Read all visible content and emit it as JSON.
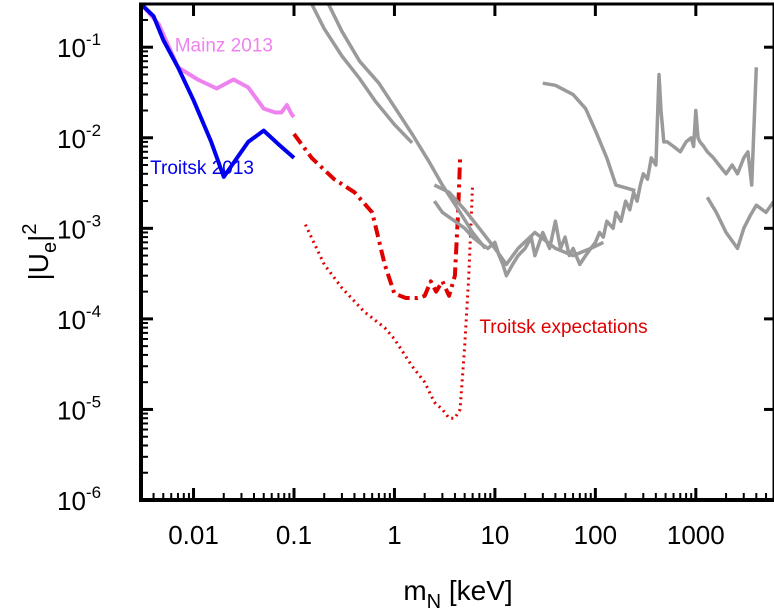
{
  "chart_data": {
    "type": "line",
    "title": "",
    "xlabel": {
      "main": "m",
      "sub": "N",
      "rest": " [keV]"
    },
    "ylabel": {
      "pre": "|U",
      "sub": "e",
      "post": "|",
      "sup": "2"
    },
    "xscale": "log",
    "yscale": "log",
    "xlim": [
      0.003,
      6000
    ],
    "ylim": [
      1e-06,
      0.3
    ],
    "x_ticks": [
      {
        "value": 0.01,
        "label": "0.01"
      },
      {
        "value": 0.1,
        "label": "0.1"
      },
      {
        "value": 1,
        "label": "1"
      },
      {
        "value": 10,
        "label": "10"
      },
      {
        "value": 100,
        "label": "100"
      },
      {
        "value": 1000,
        "label": "1000"
      }
    ],
    "y_ticks": [
      {
        "value": 1e-06,
        "base": "10",
        "exp": "-6"
      },
      {
        "value": 1e-05,
        "base": "10",
        "exp": "-5"
      },
      {
        "value": 0.0001,
        "base": "10",
        "exp": "-4"
      },
      {
        "value": 0.001,
        "base": "10",
        "exp": "-3"
      },
      {
        "value": 0.01,
        "base": "10",
        "exp": "-2"
      },
      {
        "value": 0.1,
        "base": "10",
        "exp": "-1"
      }
    ],
    "grid": false,
    "series": [
      {
        "name": "Mainz 2013",
        "color": "#ee82ee",
        "style": "solid",
        "x": [
          0.003,
          0.0045,
          0.007,
          0.011,
          0.017,
          0.025,
          0.035,
          0.05,
          0.065,
          0.075,
          0.085,
          0.095,
          0.1
        ],
        "y": [
          0.3,
          0.18,
          0.06,
          0.044,
          0.035,
          0.044,
          0.036,
          0.021,
          0.019,
          0.019,
          0.023,
          0.018,
          0.017
        ]
      },
      {
        "name": "Troitsk 2013",
        "color": "#0000ee",
        "style": "solid",
        "x": [
          0.003,
          0.004,
          0.005,
          0.007,
          0.01,
          0.015,
          0.02,
          0.035,
          0.05,
          0.07,
          0.1
        ],
        "y": [
          0.3,
          0.22,
          0.12,
          0.06,
          0.026,
          0.009,
          0.0037,
          0.009,
          0.012,
          0.0085,
          0.006
        ]
      },
      {
        "name": "Troitsk expectations (dash-dot)",
        "color": "#e00000",
        "style": "dashdot",
        "x": [
          0.1,
          0.15,
          0.25,
          0.4,
          0.6,
          0.8,
          1.0,
          1.3,
          1.7,
          2.0,
          2.3,
          2.6,
          3.0,
          3.5,
          4.0,
          4.3,
          4.5
        ],
        "y": [
          0.011,
          0.006,
          0.0035,
          0.0025,
          0.0015,
          0.0004,
          0.00019,
          0.00017,
          0.00017,
          0.00018,
          0.00026,
          0.0002,
          0.00026,
          0.00018,
          0.0003,
          0.0015,
          0.006
        ]
      },
      {
        "name": "Troitsk expectations (dotted)",
        "color": "#e00000",
        "style": "dotted",
        "x": [
          0.13,
          0.2,
          0.3,
          0.5,
          0.8,
          1.0,
          1.5,
          2.0,
          2.5,
          3.0,
          3.5,
          4.0,
          4.5,
          5.0,
          5.5,
          6.0
        ],
        "y": [
          0.0011,
          0.0004,
          0.00022,
          0.00012,
          8e-05,
          6e-05,
          3e-05,
          2e-05,
          1.2e-05,
          1e-05,
          8e-06,
          8e-06,
          1e-05,
          5e-05,
          0.0003,
          0.003
        ]
      },
      {
        "name": "",
        "color": "#9a9a9a",
        "style": "solid",
        "x": [
          0.22,
          0.3,
          0.45,
          0.7,
          1.0,
          1.5,
          2.2,
          3.0,
          4.5,
          6.0,
          8.0
        ],
        "y": [
          0.3,
          0.15,
          0.07,
          0.04,
          0.022,
          0.011,
          0.0055,
          0.003,
          0.0015,
          0.0009,
          0.0006
        ]
      },
      {
        "name": "",
        "color": "#9a9a9a",
        "style": "solid",
        "x": [
          0.15,
          0.2,
          0.3,
          0.45,
          0.65,
          1.0,
          1.5
        ],
        "y": [
          0.3,
          0.16,
          0.08,
          0.045,
          0.025,
          0.014,
          0.0088
        ]
      },
      {
        "name": "",
        "color": "#9a9a9a",
        "style": "solid",
        "x": [
          2.5,
          3.5,
          5.0,
          7.0,
          10.0,
          13.0,
          17.0,
          25.0,
          40.0,
          60.0,
          90.0,
          120.0
        ],
        "y": [
          0.003,
          0.0025,
          0.0016,
          0.001,
          0.0006,
          0.0004,
          0.0006,
          0.0009,
          0.0006,
          0.0005,
          0.0006,
          0.0007
        ]
      },
      {
        "name": "",
        "color": "#9a9a9a",
        "style": "solid",
        "x": [
          2.5,
          3.0,
          4.0,
          5.0,
          6.0,
          7.0,
          8.5,
          10.0,
          11.0,
          12.0,
          13.0,
          15.0,
          17.0,
          20.0,
          23.0,
          25.0,
          30.0,
          35.0,
          40.0,
          45.0,
          50.0,
          55.0,
          60.0,
          70.0,
          80.0,
          90.0,
          100.0,
          110.0,
          120.0,
          130.0,
          150.0,
          160.0,
          180.0,
          200.0,
          220.0,
          240.0,
          260.0,
          280.0,
          300.0,
          330.0,
          360.0,
          400.0,
          430.0,
          450.0,
          480.0,
          520.0,
          600.0,
          700.0,
          800.0,
          900.0,
          950.0,
          1000.0,
          1050.0,
          1100.0,
          1200.0,
          1300.0,
          1500.0,
          1700.0,
          2000.0,
          2300.0,
          2600.0,
          3000.0,
          3300.0,
          3600.0,
          4000.0
        ],
        "y": [
          0.002,
          0.0015,
          0.0012,
          0.001,
          0.0008,
          0.0007,
          0.0006,
          0.0007,
          0.0005,
          0.0004,
          0.0003,
          0.0004,
          0.0005,
          0.0006,
          0.0008,
          0.0005,
          0.0009,
          0.0006,
          0.0012,
          0.0006,
          0.0008,
          0.0005,
          0.0006,
          0.0004,
          0.0005,
          0.0006,
          0.0007,
          0.0009,
          0.0008,
          0.0012,
          0.001,
          0.0015,
          0.0012,
          0.002,
          0.0016,
          0.0025,
          0.002,
          0.003,
          0.004,
          0.0035,
          0.006,
          0.005,
          0.05,
          0.02,
          0.009,
          0.009,
          0.008,
          0.007,
          0.009,
          0.01,
          0.008,
          0.02,
          0.01,
          0.009,
          0.008,
          0.007,
          0.006,
          0.005,
          0.004,
          0.005,
          0.004,
          0.006,
          0.007,
          0.003,
          0.06
        ]
      },
      {
        "name": "",
        "color": "#9a9a9a",
        "style": "solid",
        "x": [
          30.0,
          40.0,
          60.0,
          80.0,
          100.0,
          130.0,
          160.0,
          200.0,
          250.0
        ],
        "y": [
          0.04,
          0.038,
          0.03,
          0.021,
          0.012,
          0.006,
          0.003,
          0.0028,
          0.0026
        ]
      },
      {
        "name": "",
        "color": "#9a9a9a",
        "style": "solid",
        "x": [
          1300.0,
          1600.0,
          2000.0,
          2600.0,
          3000.0,
          3500.0,
          4000.0,
          5000.0,
          6000.0
        ],
        "y": [
          0.0022,
          0.0015,
          0.0009,
          0.0006,
          0.001,
          0.0014,
          0.0018,
          0.0015,
          0.002
        ]
      }
    ],
    "annotations": [
      {
        "text": "Mainz 2013",
        "color": "#ee82ee",
        "x": 0.0065,
        "y": 0.09
      },
      {
        "text": "Troitsk 2013",
        "color": "#0000ee",
        "x": 0.0037,
        "y": 0.004
      },
      {
        "text": "Troitsk expectations",
        "color": "#e00000",
        "x": 7.0,
        "y": 7e-05
      }
    ]
  }
}
